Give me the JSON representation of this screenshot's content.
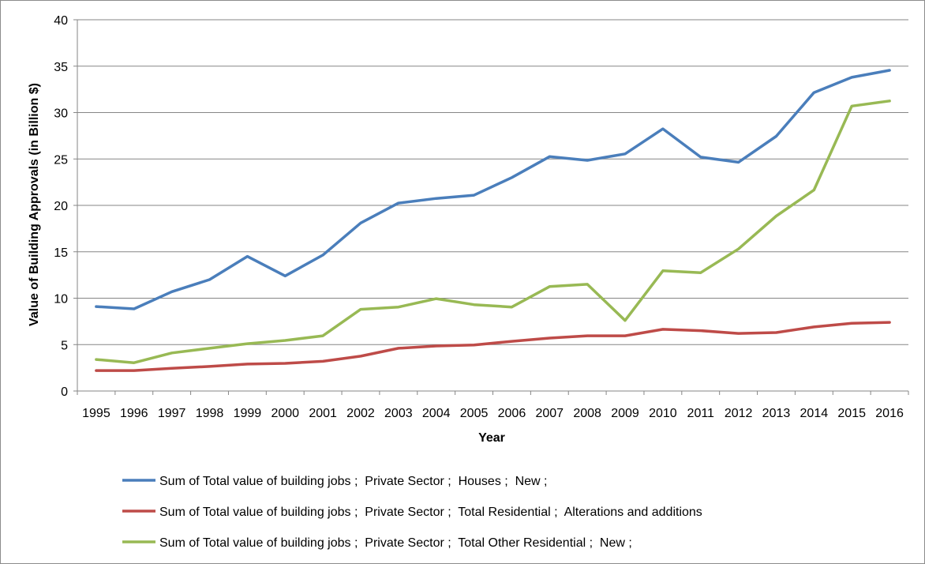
{
  "chart_data": {
    "type": "line",
    "xlabel": "Year",
    "ylabel": "Value of Building Approvals (in Billion $)",
    "ylim": [
      0,
      40
    ],
    "yticks": [
      "0",
      "5",
      "10",
      "15",
      "20",
      "25",
      "30",
      "35",
      "40"
    ],
    "categories": [
      "1995",
      "1996",
      "1997",
      "1998",
      "1999",
      "2000",
      "2001",
      "2002",
      "2003",
      "2004",
      "2005",
      "2006",
      "2007",
      "2008",
      "2009",
      "2010",
      "2011",
      "2012",
      "2013",
      "2014",
      "2015",
      "2016"
    ],
    "grid": "horizontal",
    "legend_position": "bottom",
    "series": [
      {
        "name": "Sum of Total value of building jobs ;  Private Sector ;  Houses ;  New ;",
        "color": "#4a7ebb",
        "values": [
          9.1,
          8.85,
          10.7,
          12.0,
          14.5,
          12.4,
          14.65,
          18.1,
          20.25,
          20.75,
          21.1,
          23.0,
          25.25,
          24.85,
          25.55,
          28.25,
          25.2,
          24.65,
          27.45,
          32.15,
          33.8,
          34.55
        ]
      },
      {
        "name": "Sum of Total value of building jobs ;  Private Sector ;  Total Residential ;  Alterations and additions",
        "color": "#be4b48",
        "values": [
          2.2,
          2.2,
          2.45,
          2.65,
          2.9,
          2.98,
          3.2,
          3.75,
          4.6,
          4.85,
          4.95,
          5.35,
          5.7,
          5.95,
          5.95,
          6.65,
          6.5,
          6.2,
          6.3,
          6.9,
          7.3,
          7.4
        ]
      },
      {
        "name": "Sum of Total value of building jobs ;  Private Sector ;  Total Other Residential ;  New ;",
        "color": "#98b954",
        "values": [
          3.4,
          3.05,
          4.1,
          4.6,
          5.1,
          5.45,
          5.95,
          8.8,
          9.05,
          9.95,
          9.3,
          9.05,
          11.25,
          11.5,
          7.6,
          12.95,
          12.75,
          15.3,
          18.85,
          21.65,
          30.7,
          31.25
        ]
      }
    ]
  }
}
